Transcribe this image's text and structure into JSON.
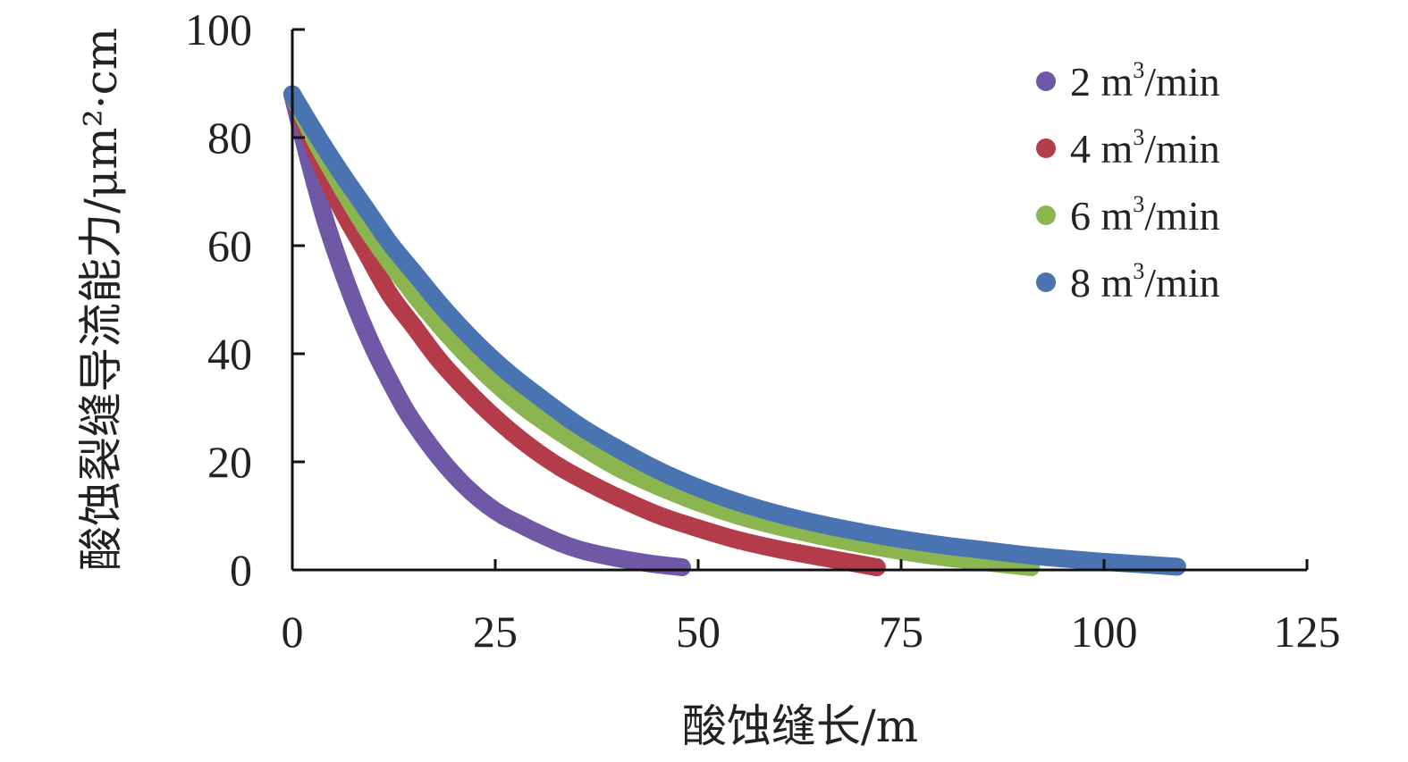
{
  "chart_data": {
    "type": "scatter",
    "title": "",
    "xlabel": "酸蚀缝长/m",
    "ylabel": "酸蚀裂缝导流能力/μm²·cm",
    "xlim": [
      0,
      125
    ],
    "ylim": [
      0,
      100
    ],
    "x_ticks": [
      0,
      25,
      50,
      75,
      100,
      125
    ],
    "y_ticks": [
      0,
      20,
      40,
      60,
      80,
      100
    ],
    "grid": false,
    "legend_position": "top-right",
    "series": [
      {
        "name": "2 m³/min",
        "name_prefix": "2 m",
        "name_sup": "3",
        "name_suffix": "/min",
        "color": "#6f58a6",
        "x": [
          0,
          2,
          4,
          6,
          8,
          10,
          12,
          14,
          16,
          18,
          20,
          22,
          24,
          26,
          28,
          30,
          33,
          36,
          40,
          44,
          48
        ],
        "y": [
          88,
          76,
          65,
          56,
          48,
          41,
          35,
          29.5,
          25,
          21,
          17.5,
          14.5,
          12,
          10,
          8.5,
          7,
          5,
          3.5,
          2.2,
          1.2,
          0.5
        ]
      },
      {
        "name": "4 m³/min",
        "name_prefix": "4 m",
        "name_sup": "3",
        "name_suffix": "/min",
        "color": "#b33b4a",
        "x": [
          0,
          3,
          6,
          9,
          12,
          15,
          18,
          21,
          24,
          27,
          30,
          33,
          36,
          40,
          45,
          50,
          55,
          60,
          65,
          72
        ],
        "y": [
          88,
          77,
          67,
          59,
          51,
          45,
          39,
          34,
          29.5,
          25.5,
          22,
          19,
          16.5,
          13.5,
          10.2,
          7.7,
          5.5,
          3.8,
          2.4,
          0.5
        ]
      },
      {
        "name": "6 m³/min",
        "name_prefix": "6 m",
        "name_sup": "3",
        "name_suffix": "/min",
        "color": "#8ab54f",
        "x": [
          0,
          3,
          6,
          9,
          12,
          15,
          18,
          21,
          24,
          27,
          30,
          35,
          40,
          45,
          50,
          55,
          60,
          65,
          70,
          75,
          80,
          85,
          91
        ],
        "y": [
          88,
          79,
          71,
          63.5,
          57,
          51,
          45.5,
          40.5,
          36,
          32,
          28.5,
          23.5,
          19,
          15.5,
          12.5,
          10,
          8,
          6.3,
          4.8,
          3.5,
          2.4,
          1.5,
          0.5
        ]
      },
      {
        "name": "8 m³/min",
        "name_prefix": "8 m",
        "name_sup": "3",
        "name_suffix": "/min",
        "color": "#4a74b1",
        "x": [
          0,
          3,
          6,
          9,
          12,
          15,
          18,
          21,
          24,
          27,
          30,
          35,
          40,
          45,
          50,
          55,
          60,
          65,
          70,
          75,
          80,
          85,
          90,
          95,
          100,
          105,
          109
        ],
        "y": [
          88,
          80.5,
          73.5,
          67,
          60.5,
          55,
          49.5,
          44.5,
          40,
          36,
          32.5,
          27,
          22.5,
          18.5,
          15.2,
          12.5,
          10.3,
          8.5,
          7,
          5.7,
          4.6,
          3.7,
          2.8,
          2.1,
          1.5,
          1,
          0.6
        ]
      }
    ]
  }
}
